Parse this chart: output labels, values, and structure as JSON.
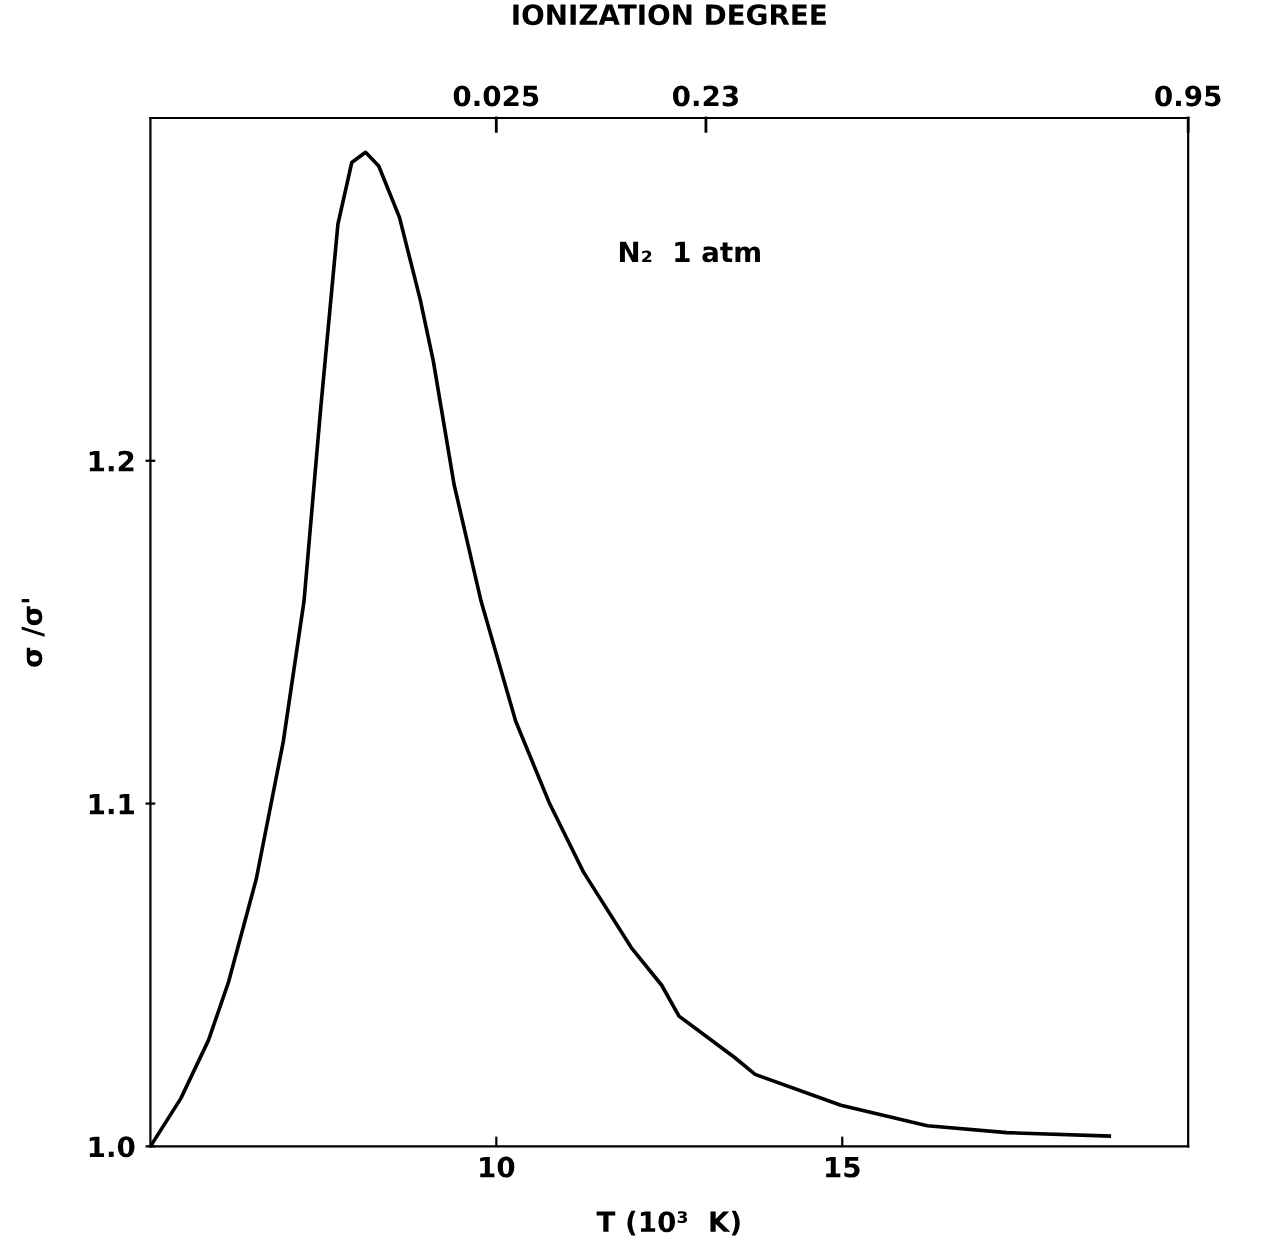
{
  "chart_data": {
    "type": "line",
    "xlabel": "T (10³  K)",
    "ylabel": "σ /σ'",
    "x2label": "IONIZATION DEGREE",
    "annotations": [
      "N₂  1 atm",
      "0.025",
      "0.23",
      "0.95"
    ],
    "x": [
      5.0,
      5.44,
      5.84,
      6.13,
      6.53,
      6.92,
      7.22,
      7.46,
      7.71,
      7.91,
      8.11,
      8.3,
      8.6,
      8.9,
      9.09,
      9.39,
      9.78,
      10.28,
      10.77,
      11.26,
      11.95,
      12.39,
      12.64,
      13.44,
      13.74,
      14.98,
      16.23,
      17.38,
      18.86
    ],
    "series": [
      {
        "color": "#000000",
        "values": [
          1.0,
          1.014,
          1.031,
          1.048,
          1.078,
          1.118,
          1.159,
          1.215,
          1.269,
          1.287,
          1.29,
          1.286,
          1.271,
          1.247,
          1.229,
          1.193,
          1.159,
          1.124,
          1.1,
          1.08,
          1.058,
          1.047,
          1.038,
          1.026,
          1.021,
          1.012,
          1.006,
          1.004,
          1.003
        ]
      }
    ],
    "xlim": [
      5,
      20
    ],
    "xticks": [
      10,
      15
    ],
    "ylim": [
      1.0,
      1.3
    ],
    "yticks": [
      {
        "value": 1.0,
        "label": "1.0"
      },
      1.1,
      1.2
    ],
    "grid": false,
    "legend": false,
    "marker": "none",
    "line_style": "solid"
  }
}
